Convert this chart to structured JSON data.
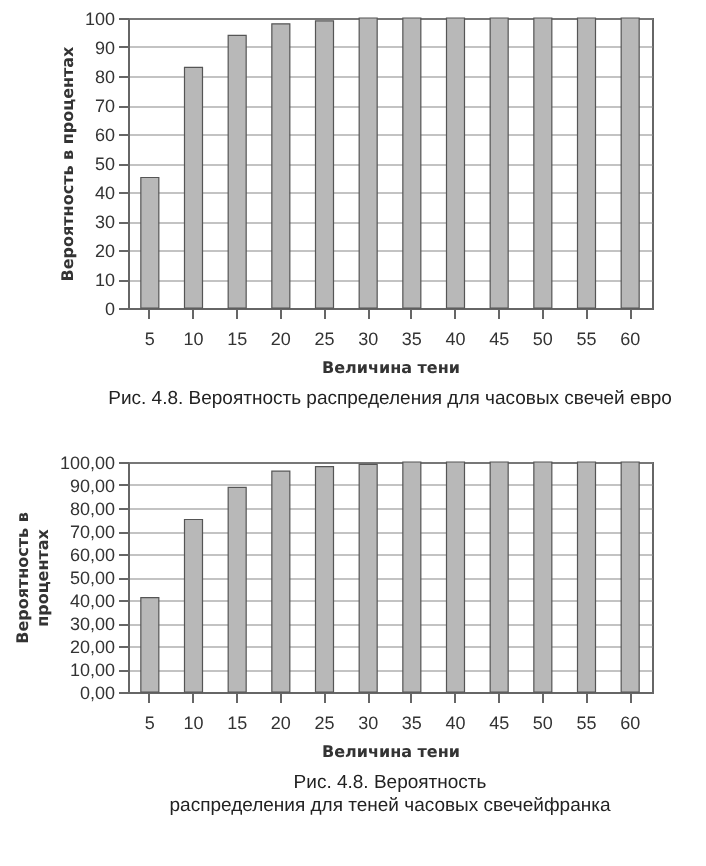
{
  "chart_data": [
    {
      "type": "bar",
      "categories": [
        "5",
        "10",
        "15",
        "20",
        "25",
        "30",
        "35",
        "40",
        "45",
        "50",
        "55",
        "60"
      ],
      "values": [
        45,
        83,
        94,
        98,
        99,
        100,
        100,
        100,
        100,
        100,
        100,
        100
      ],
      "color": "#b8b8b8",
      "xlabel": "Величина тени",
      "ylabel": "Вероятность в процентах",
      "ylim": [
        0,
        100
      ],
      "yticks": [
        0,
        10,
        20,
        30,
        40,
        50,
        60,
        70,
        80,
        90,
        100
      ],
      "grid": "y",
      "annotations": [
        "Рис. 4.8. Вероятность распределения для часовых свечей евро"
      ]
    },
    {
      "type": "bar",
      "categories": [
        "5",
        "10",
        "15",
        "20",
        "25",
        "30",
        "35",
        "40",
        "45",
        "50",
        "55",
        "60"
      ],
      "values": [
        41,
        75,
        89,
        96,
        98,
        99,
        100,
        100,
        100,
        100,
        100,
        100
      ],
      "color": "#b8b8b8",
      "xlabel": "Величина тени",
      "ylabel": "Вероятность в\nпроцентах",
      "ylim": [
        0,
        100
      ],
      "yticks": [
        {
          "value": 0,
          "label": "0,00"
        },
        {
          "value": 10,
          "label": "10,00"
        },
        {
          "value": 20,
          "label": "20,00"
        },
        {
          "value": 30,
          "label": "30,00"
        },
        {
          "value": 40,
          "label": "40,00"
        },
        {
          "value": 50,
          "label": "50,00"
        },
        {
          "value": 60,
          "label": "60,00"
        },
        {
          "value": 70,
          "label": "70,00"
        },
        {
          "value": 80,
          "label": "80,00"
        },
        {
          "value": 90,
          "label": "90,00"
        },
        {
          "value": 100,
          "label": "100,00"
        }
      ],
      "grid": "y",
      "annotations": [
        "Рис. 4.8. Вероятность\nраспределения для теней часовых свечейфранка"
      ]
    }
  ]
}
